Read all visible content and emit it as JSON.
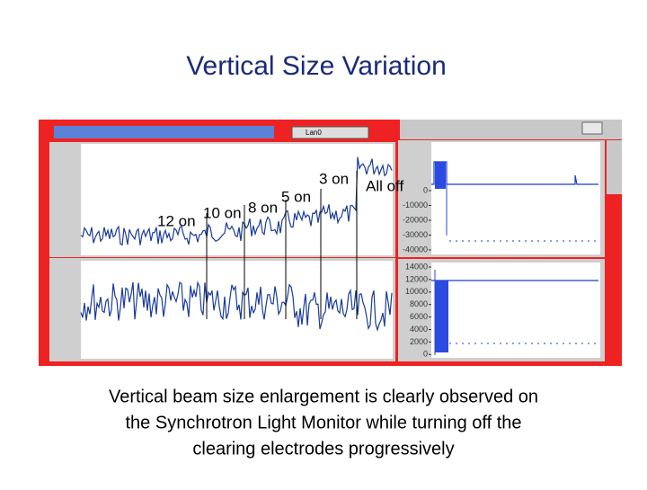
{
  "header": {
    "title": "Vertical Size Variation"
  },
  "annotations": [
    "12 on",
    "10 on",
    "8 on",
    "5 on",
    "3 on",
    "All off"
  ],
  "panel": {
    "selector": "Lan0",
    "right_top": {
      "yticks": [
        0,
        -10000,
        -20000,
        -30000,
        -40000
      ]
    },
    "right_bottom": {
      "yticks": [
        14000,
        12000,
        10000,
        8000,
        6000,
        4000,
        2000,
        0
      ]
    }
  },
  "caption": [
    "Vertical beam size enlargement is clearly observed on",
    "the Synchrotron Light Monitor while turning off the",
    "clearing electrodes progressively"
  ]
}
